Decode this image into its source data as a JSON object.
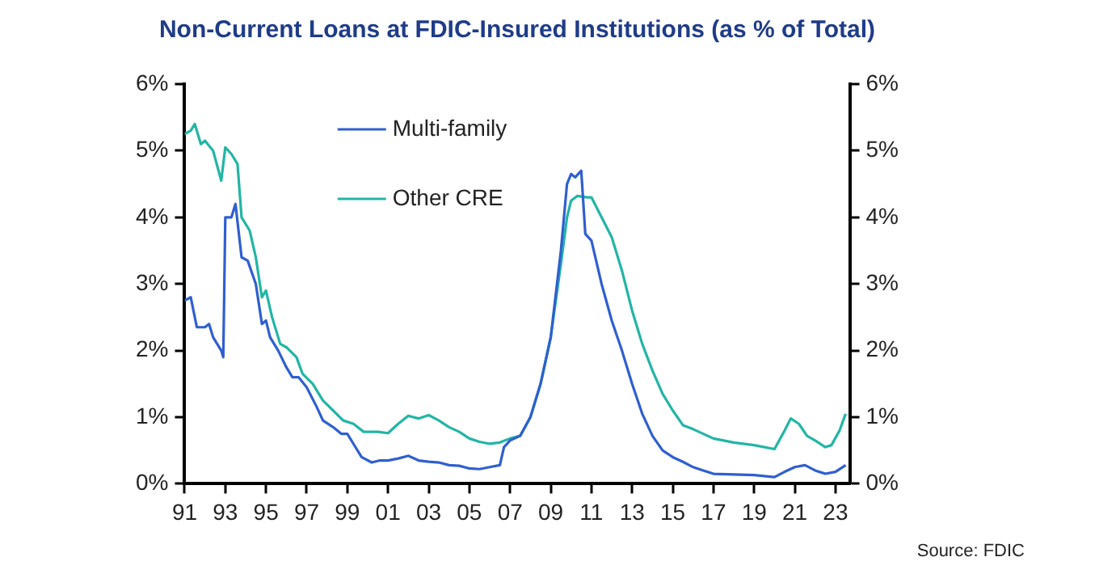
{
  "chart_data": {
    "type": "line",
    "title": "Non-Current Loans at FDIC-Insured Institutions (as % of Total)",
    "annotations": [
      "Source: FDIC"
    ],
    "legend": "top left",
    "grid": false,
    "marker": "none",
    "line_style": "solid",
    "xlim": [
      1991,
      2023.7
    ],
    "xticks": [
      {
        "value": 1991,
        "label": "91"
      },
      {
        "value": 1993,
        "label": "93"
      },
      {
        "value": 1995,
        "label": "95"
      },
      {
        "value": 1997,
        "label": "97"
      },
      {
        "value": 1999,
        "label": "99"
      },
      {
        "value": 2001,
        "label": "01"
      },
      {
        "value": 2003,
        "label": "03"
      },
      {
        "value": 2005,
        "label": "05"
      },
      {
        "value": 2007,
        "label": "07"
      },
      {
        "value": 2009,
        "label": "09"
      },
      {
        "value": 2011,
        "label": "11"
      },
      {
        "value": 2013,
        "label": "13"
      },
      {
        "value": 2015,
        "label": "15"
      },
      {
        "value": 2017,
        "label": "17"
      },
      {
        "value": 2019,
        "label": "19"
      },
      {
        "value": 2021,
        "label": "21"
      },
      {
        "value": 2023,
        "label": "23"
      }
    ],
    "ylim": [
      0,
      6
    ],
    "yticks": [
      {
        "value": 0,
        "label": "0%"
      },
      {
        "value": 1,
        "label": "1%"
      },
      {
        "value": 2,
        "label": "2%"
      },
      {
        "value": 3,
        "label": "3%"
      },
      {
        "value": 4,
        "label": "4%"
      },
      {
        "value": 5,
        "label": "5%"
      },
      {
        "value": 6,
        "label": "6%"
      }
    ],
    "y2lim": [
      0,
      6
    ],
    "y2ticks": [
      {
        "value": 0,
        "label": "0%"
      },
      {
        "value": 1,
        "label": "1%"
      },
      {
        "value": 2,
        "label": "2%"
      },
      {
        "value": 3,
        "label": "3%"
      },
      {
        "value": 4,
        "label": "4%"
      },
      {
        "value": 5,
        "label": "5%"
      },
      {
        "value": 6,
        "label": "6%"
      }
    ],
    "series": [
      {
        "name": "Multi-family",
        "color": "#2f5fd0",
        "x": [
          1991.0,
          1991.3,
          1991.6,
          1992.0,
          1992.2,
          1992.4,
          1992.8,
          1992.9,
          1993.0,
          1993.3,
          1993.5,
          1993.8,
          1994.1,
          1994.5,
          1994.8,
          1995.0,
          1995.2,
          1995.6,
          1996.0,
          1996.3,
          1996.6,
          1997.0,
          1997.5,
          1997.8,
          1998.3,
          1998.7,
          1999.0,
          1999.3,
          1999.7,
          2000.2,
          2000.6,
          2001.0,
          2001.5,
          2002.0,
          2002.5,
          2003.0,
          2003.5,
          2004.0,
          2004.5,
          2005.0,
          2005.5,
          2006.0,
          2006.5,
          2006.7,
          2007.0,
          2007.5,
          2008.0,
          2008.5,
          2009.0,
          2009.5,
          2009.8,
          2010.0,
          2010.2,
          2010.5,
          2010.7,
          2011.0,
          2011.5,
          2012.0,
          2012.5,
          2013.0,
          2013.5,
          2014.0,
          2014.5,
          2015.0,
          2015.5,
          2016.0,
          2016.5,
          2017.0,
          2018.0,
          2019.0,
          2020.0,
          2020.5,
          2021.0,
          2021.5,
          2022.0,
          2022.5,
          2023.0,
          2023.5
        ],
        "values": [
          2.75,
          2.8,
          2.35,
          2.35,
          2.4,
          2.2,
          2.0,
          1.9,
          4.0,
          4.0,
          4.2,
          3.4,
          3.35,
          3.0,
          2.4,
          2.45,
          2.2,
          2.0,
          1.75,
          1.6,
          1.6,
          1.45,
          1.15,
          0.95,
          0.85,
          0.75,
          0.75,
          0.6,
          0.4,
          0.32,
          0.35,
          0.35,
          0.38,
          0.42,
          0.35,
          0.33,
          0.32,
          0.28,
          0.27,
          0.23,
          0.22,
          0.25,
          0.28,
          0.55,
          0.65,
          0.72,
          1.0,
          1.5,
          2.2,
          3.5,
          4.5,
          4.65,
          4.6,
          4.7,
          3.75,
          3.65,
          3.0,
          2.45,
          2.0,
          1.5,
          1.05,
          0.72,
          0.5,
          0.4,
          0.33,
          0.25,
          0.2,
          0.15,
          0.14,
          0.13,
          0.1,
          0.18,
          0.25,
          0.28,
          0.2,
          0.15,
          0.18,
          0.28
        ]
      },
      {
        "name": "Other CRE",
        "color": "#22b5a5",
        "x": [
          1991.0,
          1991.3,
          1991.5,
          1991.8,
          1992.0,
          1992.4,
          1992.8,
          1993.0,
          1993.3,
          1993.6,
          1993.8,
          1994.2,
          1994.5,
          1994.8,
          1995.0,
          1995.3,
          1995.7,
          1996.0,
          1996.5,
          1996.8,
          1997.3,
          1997.8,
          1998.3,
          1998.8,
          1999.3,
          1999.8,
          2000.5,
          2001.0,
          2001.5,
          2002.0,
          2002.5,
          2003.0,
          2003.5,
          2004.0,
          2004.5,
          2005.0,
          2005.5,
          2006.0,
          2006.5,
          2007.0,
          2007.5,
          2008.0,
          2008.5,
          2009.0,
          2009.5,
          2009.8,
          2010.0,
          2010.3,
          2010.8,
          2011.0,
          2011.5,
          2012.0,
          2012.5,
          2013.0,
          2013.5,
          2014.0,
          2014.5,
          2015.0,
          2015.5,
          2016.0,
          2016.5,
          2017.0,
          2018.0,
          2019.0,
          2020.0,
          2020.5,
          2020.8,
          2021.2,
          2021.6,
          2022.0,
          2022.5,
          2022.8,
          2023.2,
          2023.5
        ],
        "values": [
          5.25,
          5.3,
          5.4,
          5.1,
          5.15,
          5.0,
          4.55,
          5.05,
          4.95,
          4.8,
          4.0,
          3.8,
          3.4,
          2.8,
          2.9,
          2.5,
          2.1,
          2.05,
          1.9,
          1.65,
          1.5,
          1.25,
          1.1,
          0.95,
          0.9,
          0.78,
          0.78,
          0.76,
          0.9,
          1.02,
          0.98,
          1.03,
          0.95,
          0.85,
          0.78,
          0.68,
          0.63,
          0.6,
          0.62,
          0.68,
          0.72,
          1.0,
          1.5,
          2.2,
          3.3,
          4.0,
          4.25,
          4.32,
          4.3,
          4.3,
          4.0,
          3.7,
          3.2,
          2.6,
          2.1,
          1.7,
          1.35,
          1.1,
          0.88,
          0.82,
          0.75,
          0.68,
          0.62,
          0.58,
          0.52,
          0.8,
          0.98,
          0.9,
          0.72,
          0.65,
          0.55,
          0.58,
          0.8,
          1.05
        ]
      }
    ]
  }
}
